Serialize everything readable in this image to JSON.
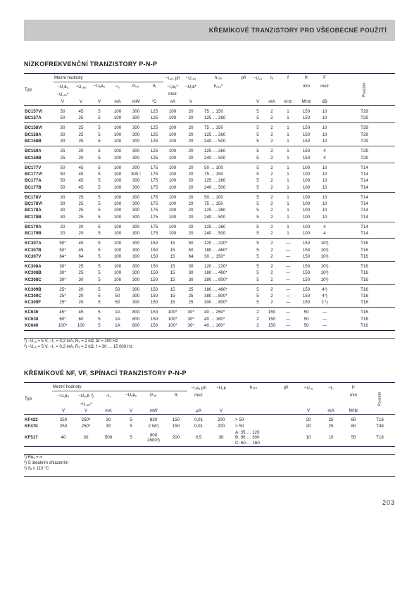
{
  "banner": "KŘEMÍKOVÉ TRANZISTORY PRO VŠEOBECNÉ POUŽITÍ",
  "section1_title": "NÍZKOFREKVENČNÍ TRANZISTORY P-N-P",
  "section2_title": "KŘEMÍKOVÉ NF, VF, SPÍNACÍ TRANZISTORY P-N-P",
  "t1_head": {
    "typ": "Typ",
    "mezni": "Mezní hodnoty",
    "ices_pri": "−I꜀ₑₛ při",
    "uces": "−U꜀ₑₛ",
    "h21e": "h₂₁ₑ",
    "pri": "při",
    "uce": "−U꜀ₑ",
    "ie": "Iₑ",
    "f_": "f",
    "fT": "fᴛ",
    "F_": "F",
    "pouz": "Pouzdro",
    "ucbo": "−U꜀ʙₒ",
    "uceo": "−U꜀ₑₒ",
    "uebo": "−Uₑʙₒ",
    "ic": "−I꜀",
    "ptot": "Pₜₒₜ",
    "tj": "ϑⱼ",
    "icbo": "−I꜀ʙₒ*",
    "ucb": "−U꜀ʙ*",
    "h21e2": "h₂₁ₑ*",
    "uces2": "−U꜀ₑₛ*",
    "min": "min",
    "mez": "mez",
    "u_v": "V",
    "u_ma": "mA",
    "u_mw": "mW",
    "u_c": "°C",
    "u_na": "nA",
    "u_khz": "kHz",
    "u_mhz": "MHz",
    "u_db": "dB"
  },
  "t1_groups": [
    [
      [
        "BC157VI",
        "50",
        "45",
        "5",
        "100",
        "300",
        "125",
        "100",
        "20",
        "75 … 150",
        "5",
        "2",
        "1",
        "150",
        "10",
        "T29"
      ],
      [
        "BC157A",
        "50",
        "25",
        "5",
        "100",
        "300",
        "125",
        "100",
        "20",
        "125 … 260",
        "5",
        "2",
        "1",
        "150",
        "10",
        "T29"
      ]
    ],
    [
      [
        "BC158VI",
        "30",
        "25",
        "5",
        "100",
        "300",
        "125",
        "100",
        "20",
        "75 … 150",
        "5",
        "2",
        "1",
        "150",
        "10",
        "T29"
      ],
      [
        "BC158A",
        "30",
        "25",
        "5",
        "100",
        "300",
        "125",
        "100",
        "20",
        "125 … 260",
        "5",
        "2",
        "1",
        "150",
        "10",
        "T29"
      ],
      [
        "BC158B",
        "30",
        "25",
        "5",
        "100",
        "300",
        "125",
        "100",
        "20",
        "240 … 500",
        "5",
        "2",
        "1",
        "150",
        "10",
        "T29"
      ]
    ],
    [
      [
        "BC159A",
        "25",
        "20",
        "5",
        "100",
        "300",
        "125",
        "100",
        "20",
        "125 … 260",
        "5",
        "2",
        "1",
        "150",
        "4",
        "T29"
      ],
      [
        "BC159B",
        "25",
        "20",
        "5",
        "100",
        "300",
        "125",
        "100",
        "20",
        "240 … 500",
        "5",
        "2",
        "1",
        "150",
        "4",
        "T29"
      ]
    ],
    [
      [
        "BC177V",
        "50",
        "45",
        "5",
        "100",
        "300",
        "175",
        "100",
        "20",
        "50 … 100",
        "5",
        "2",
        "1",
        "100",
        "10",
        "T14"
      ],
      [
        "BC177VI",
        "50",
        "45",
        "5",
        "100",
        "300 ¹",
        "175",
        "100",
        "20",
        "75 … 150",
        "5",
        "2",
        "1",
        "100",
        "10",
        "T14"
      ],
      [
        "BC177A",
        "50",
        "45",
        "5",
        "100",
        "300",
        "175",
        "100",
        "20",
        "125 … 260",
        "5",
        "2",
        "1",
        "100",
        "10",
        "T14"
      ],
      [
        "BC177B",
        "50",
        "45",
        "5",
        "100",
        "300",
        "175",
        "100",
        "20",
        "240 … 500",
        "5",
        "2",
        "1",
        "100",
        "10",
        "T14"
      ]
    ],
    [
      [
        "BC178V",
        "30",
        "25",
        "5",
        "100",
        "300",
        "175",
        "100",
        "20",
        "50 … 100",
        "5",
        "2",
        "1",
        "100",
        "10",
        "T14"
      ],
      [
        "BC178VI",
        "30",
        "25",
        "5",
        "100",
        "300",
        "175",
        "100",
        "20",
        "75 … 150",
        "5",
        "2",
        "1",
        "100",
        "10",
        "T14"
      ],
      [
        "BC178A",
        "30",
        "25",
        "5",
        "100",
        "300",
        "175",
        "100",
        "20",
        "125 … 260",
        "5",
        "2",
        "1",
        "100",
        "10",
        "T14"
      ],
      [
        "BC178B",
        "30",
        "25",
        "5",
        "100",
        "300",
        "175",
        "100",
        "20",
        "240 … 500",
        "5",
        "2",
        "1",
        "100",
        "10",
        "T14"
      ]
    ],
    [
      [
        "BC179A",
        "20",
        "20",
        "5",
        "100",
        "300",
        "175",
        "100",
        "20",
        "125 … 260",
        "5",
        "2",
        "1",
        "100",
        "4",
        "T14"
      ],
      [
        "BC179B",
        "20",
        "20",
        "5",
        "100",
        "300",
        "175",
        "100",
        "20",
        "240 … 500",
        "5",
        "2",
        "1",
        "100",
        "4",
        "T14"
      ]
    ],
    [
      [
        "KC307A",
        "50*",
        "45",
        "5",
        "100",
        "300",
        "150",
        "15",
        "50",
        "120 … 220*",
        "5",
        "2",
        "—",
        "150",
        "10²)",
        "T16"
      ],
      [
        "KC307B",
        "50*",
        "45",
        "5",
        "100",
        "300",
        "150",
        "15",
        "50",
        "180 … 460*",
        "5",
        "2",
        "—",
        "150",
        "10²)",
        "T16"
      ],
      [
        "KC307V",
        "64*",
        "64",
        "5",
        "100",
        "300",
        "150",
        "15",
        "64",
        "30 … 150*",
        "5",
        "2",
        "—",
        "150",
        "10²)",
        "T16"
      ]
    ],
    [
      [
        "KC308A",
        "30*",
        "25",
        "5",
        "100",
        "300",
        "150",
        "15",
        "30",
        "120 … 220*",
        "5",
        "2",
        "—",
        "150",
        "10²)",
        "T16"
      ],
      [
        "KC308B",
        "30*",
        "25",
        "5",
        "100",
        "300",
        "150",
        "15",
        "30",
        "180 … 460*",
        "5",
        "2",
        "—",
        "150",
        "10²)",
        "T16"
      ],
      [
        "KC308C",
        "30*",
        "30",
        "5",
        "100",
        "300",
        "150",
        "15",
        "30",
        "380 … 800*",
        "5",
        "2",
        "—",
        "150",
        "10²)",
        "T16"
      ]
    ],
    [
      [
        "KC309B",
        "25*",
        "20",
        "5",
        "50",
        "300",
        "150",
        "15",
        "25",
        "180 … 460*",
        "5",
        "2",
        "—",
        "150",
        "4²)",
        "T16"
      ],
      [
        "KC309C",
        "25*",
        "20",
        "5",
        "50",
        "300",
        "150",
        "15",
        "25",
        "380 … 800*",
        "5",
        "2",
        "—",
        "150",
        "4²)",
        "T16"
      ],
      [
        "KC309F",
        "25*",
        "20",
        "5",
        "50",
        "300",
        "150",
        "15",
        "25",
        "300 … 800*",
        "5",
        "2",
        "—",
        "150",
        "2 ¹)",
        "T16"
      ]
    ],
    [
      [
        "KC636",
        "45*",
        "45",
        "5",
        "1A",
        "800",
        "150",
        "100*",
        "30*",
        "40 … 250*",
        "2",
        "150",
        "—",
        "50",
        "—",
        "T16"
      ],
      [
        "KC638",
        "60*",
        "60",
        "5",
        "1A",
        "800",
        "150",
        "100*",
        "30*",
        "40 … 160*",
        "2",
        "150",
        "—",
        "50",
        "—",
        "T16"
      ],
      [
        "KC640",
        "100*",
        "100",
        "5",
        "1A",
        "800",
        "150",
        "100*",
        "30*",
        "40 … 160*",
        "2",
        "150",
        "—",
        "50",
        "—",
        "T16"
      ]
    ]
  ],
  "notes1": [
    "¹) −U꜀ₑ = 5 V, −I꜀ = 0,2 mA, R₉ = 2 kΩ, Δf = 200 Hz",
    "²) −U꜀ₑ = 5 V, −I꜀ = 0,2 mA, R₉ = 2 kΩ, f = 30 … 15 000 Hz"
  ],
  "t2_head": {
    "typ": "Typ",
    "mezni": "Mezní hodnoty",
    "ucbo": "−U꜀ʙₒ",
    "ucer": "−U꜀ₑʀ ¹)",
    "uceo": "−U꜀ₑₒ*",
    "ic": "−I꜀",
    "uebo": "−Uₑʙₒ",
    "ptot": "Pₜₒₜ",
    "tj": "ϑⱼ",
    "icbo": "−I꜀ʙₒ při",
    "ucb": "−U꜀ʙ",
    "h21e": "h₂₁ₑ",
    "pri": "při",
    "uce_out": "−U꜀ₑ",
    "ic_out": "−I꜀",
    "fT": "fᴛ",
    "pouz": "Pouzdro",
    "mez": "mez",
    "min": "min",
    "u_v": "V",
    "u_ma": "mA",
    "u_mw": "mW",
    "u_ua": "µA",
    "u_mhz": "MHz"
  },
  "t2_rows": [
    [
      "KF423",
      "250",
      "250*",
      "30",
      "5",
      "830",
      "150",
      "0,01",
      "200",
      "> 50",
      "20",
      "25",
      "60",
      "T16"
    ],
    [
      "KF470",
      "250",
      "250*",
      "30",
      "5",
      "2 W²)",
      "150",
      "0,01",
      "200",
      "> 50",
      "20",
      "25",
      "60",
      "T48"
    ],
    [
      "KF517",
      "40",
      "30",
      "500",
      "5",
      "800\n2600²)",
      "200",
      "0,5",
      "30",
      "A: 35 … 120\nB: 90 … 300\nC: 60 … 160",
      "10",
      "10",
      "50",
      "T18"
    ]
  ],
  "notes2": [
    "¹) Rʙₑ = ∞",
    "²) S ideálním chlazením",
    "³) ϑₐ ≤ 110 °C"
  ],
  "pagenum": "203"
}
